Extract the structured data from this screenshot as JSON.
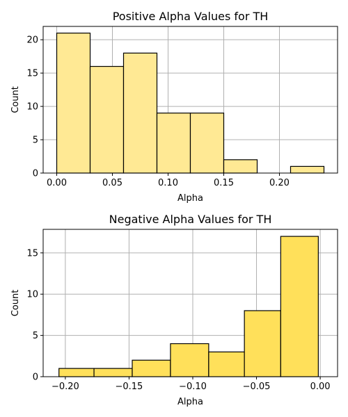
{
  "chart_data": [
    {
      "type": "bar",
      "title": "Positive Alpha Values for TH",
      "xlabel": "Alpha",
      "ylabel": "Count",
      "color": "#ffe994",
      "xlim": [
        -0.0122,
        0.2522
      ],
      "ylim": [
        0,
        22
      ],
      "xticks": [
        0.0,
        0.05,
        0.1,
        0.15,
        0.2
      ],
      "xtick_labels": [
        "0.00",
        "0.05",
        "0.10",
        "0.15",
        "0.20"
      ],
      "yticks": [
        0,
        5,
        10,
        15,
        20
      ],
      "ytick_labels": [
        "0",
        "5",
        "10",
        "15",
        "20"
      ],
      "grid": true,
      "bins": [
        {
          "x0": 0.0,
          "x1": 0.03,
          "value": 21
        },
        {
          "x0": 0.03,
          "x1": 0.06,
          "value": 16
        },
        {
          "x0": 0.06,
          "x1": 0.09,
          "value": 18
        },
        {
          "x0": 0.09,
          "x1": 0.12,
          "value": 9
        },
        {
          "x0": 0.12,
          "x1": 0.15,
          "value": 9
        },
        {
          "x0": 0.15,
          "x1": 0.18,
          "value": 2
        },
        {
          "x0": 0.18,
          "x1": 0.21,
          "value": 0
        },
        {
          "x0": 0.21,
          "x1": 0.24,
          "value": 1
        }
      ]
    },
    {
      "type": "bar",
      "title": "Negative Alpha Values for TH",
      "xlabel": "Alpha",
      "ylabel": "Count",
      "color": "#ffe05a",
      "xlim": [
        -0.2174,
        0.0136
      ],
      "ylim": [
        0,
        17.85
      ],
      "xticks": [
        -0.2,
        -0.15,
        -0.1,
        -0.05,
        0.0
      ],
      "xtick_labels": [
        "−0.20",
        "−0.15",
        "−0.10",
        "−0.05",
        "0.00"
      ],
      "yticks": [
        0,
        5,
        10,
        15
      ],
      "ytick_labels": [
        "0",
        "5",
        "10",
        "15"
      ],
      "grid": true,
      "bins": [
        {
          "x0": -0.205,
          "x1": -0.1775,
          "value": 1
        },
        {
          "x0": -0.1775,
          "x1": -0.1475,
          "value": 1
        },
        {
          "x0": -0.1475,
          "x1": -0.1175,
          "value": 2
        },
        {
          "x0": -0.1175,
          "x1": -0.0875,
          "value": 4
        },
        {
          "x0": -0.0875,
          "x1": -0.0595,
          "value": 3
        },
        {
          "x0": -0.0595,
          "x1": -0.031,
          "value": 8
        },
        {
          "x0": -0.031,
          "x1": -0.0015,
          "value": 17
        }
      ]
    }
  ]
}
